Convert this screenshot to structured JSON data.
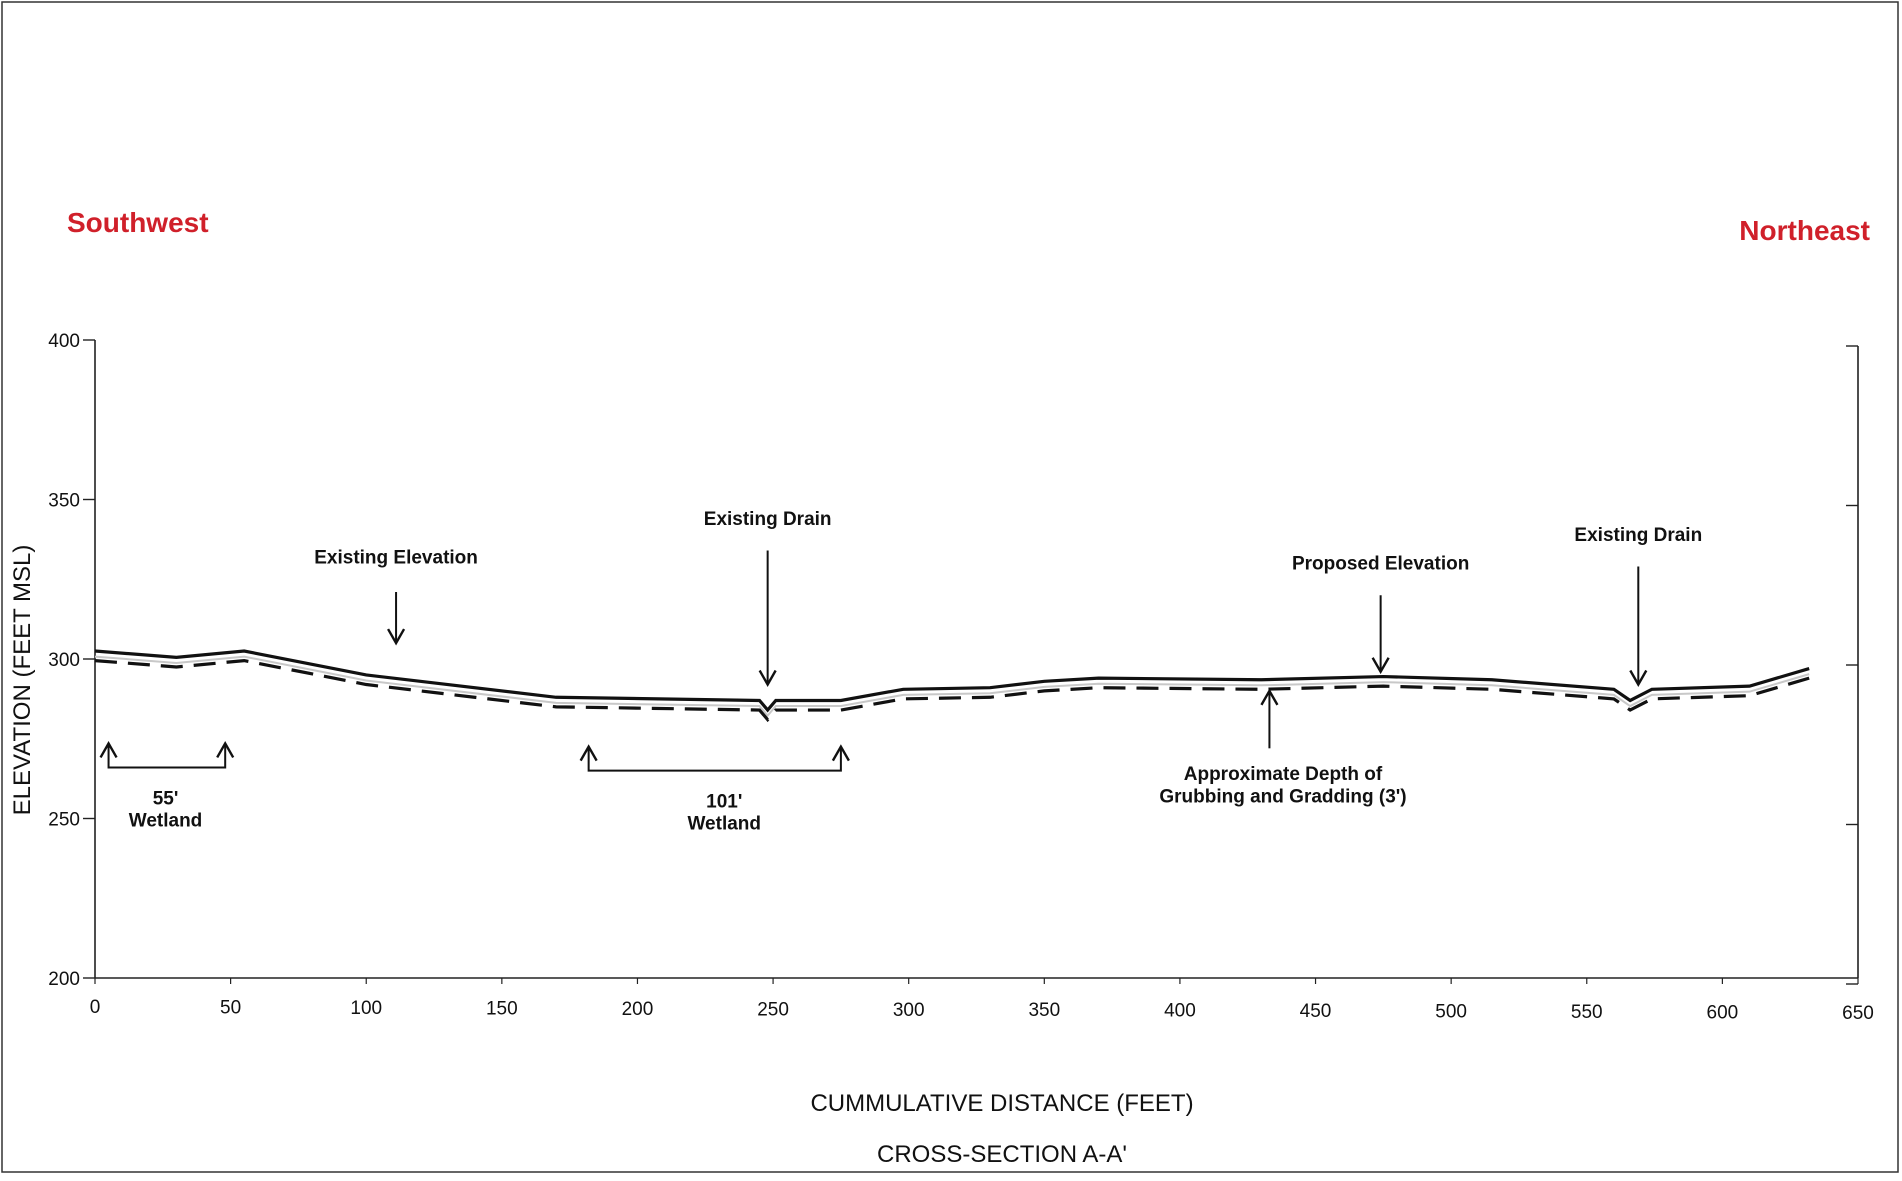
{
  "chart_data": {
    "type": "line",
    "title": "CROSS-SECTION A-A'",
    "xlabel": "CUMMULATIVE DISTANCE (FEET)",
    "ylabel": "ELEVATION (FEET MSL)",
    "xlim": [
      0,
      650
    ],
    "ylim": [
      200,
      400
    ],
    "x_ticks": [
      0,
      50,
      100,
      150,
      200,
      250,
      300,
      350,
      400,
      450,
      500,
      550,
      600,
      650
    ],
    "y_ticks": [
      200,
      250,
      300,
      350,
      400
    ],
    "direction_left": "Southwest",
    "direction_right": "Northeast",
    "direction_color": "#d0202a",
    "series": [
      {
        "name": "Existing Elevation",
        "style": "solid",
        "points": [
          [
            0,
            302.5
          ],
          [
            30,
            300.5
          ],
          [
            55,
            302.5
          ],
          [
            100,
            295
          ],
          [
            170,
            288
          ],
          [
            245,
            287
          ],
          [
            248,
            284
          ],
          [
            251,
            287
          ],
          [
            275,
            287
          ],
          [
            298,
            290.5
          ],
          [
            330,
            291
          ],
          [
            350,
            293
          ],
          [
            370,
            294
          ],
          [
            430,
            293.5
          ],
          [
            475,
            294.5
          ],
          [
            515,
            293.5
          ],
          [
            560,
            290.5
          ],
          [
            566,
            287
          ],
          [
            574,
            290.5
          ],
          [
            610,
            291.5
          ],
          [
            632,
            297
          ]
        ]
      },
      {
        "name": "Proposed Elevation",
        "style": "dashed",
        "points": [
          [
            0,
            299.5
          ],
          [
            30,
            297.5
          ],
          [
            55,
            299.5
          ],
          [
            100,
            292
          ],
          [
            170,
            285
          ],
          [
            245,
            284
          ],
          [
            248,
            281
          ],
          [
            251,
            284
          ],
          [
            275,
            284
          ],
          [
            298,
            287.5
          ],
          [
            330,
            288
          ],
          [
            350,
            290
          ],
          [
            370,
            291
          ],
          [
            430,
            290.5
          ],
          [
            475,
            291.5
          ],
          [
            515,
            290.5
          ],
          [
            560,
            287.5
          ],
          [
            566,
            284
          ],
          [
            574,
            287.5
          ],
          [
            610,
            288.5
          ],
          [
            632,
            294
          ]
        ]
      }
    ],
    "annotations": [
      {
        "label": "Existing Elevation",
        "text_x": 111,
        "text_y": 330,
        "arrow_from_y": 321,
        "arrow_x": 111,
        "arrow_to_y": 305
      },
      {
        "label": "Existing Drain",
        "text_x": 248,
        "text_y": 342,
        "arrow_from_y": 334,
        "arrow_x": 248,
        "arrow_to_y": 292
      },
      {
        "label": "Proposed Elevation",
        "text_x": 474,
        "text_y": 328,
        "arrow_from_y": 320,
        "arrow_x": 474,
        "arrow_to_y": 296
      },
      {
        "label": "Existing Drain",
        "text_x": 569,
        "text_y": 337,
        "arrow_from_y": 329,
        "arrow_x": 569,
        "arrow_to_y": 292
      }
    ],
    "depth_note": {
      "lines": [
        "Approximate Depth of",
        "Grubbing and Gradding (3')"
      ],
      "arrow_x": 433,
      "arrow_from_y": 272,
      "arrow_to_y": 290,
      "text_x": 438,
      "text_y1": 262,
      "text_y2": 255
    },
    "wetlands": [
      {
        "length": "55'",
        "label": "Wetland",
        "x_start": 5,
        "x_end": 48,
        "bracket_y": 266,
        "text_x": 26
      },
      {
        "length": "101'",
        "label": "Wetland",
        "x_start": 182,
        "x_end": 275,
        "bracket_y": 265,
        "text_x": 232
      }
    ]
  }
}
